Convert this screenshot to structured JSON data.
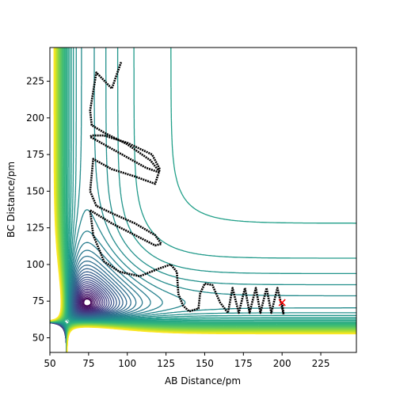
{
  "chart_data": {
    "type": "contour",
    "xlabel": "AB Distance/pm",
    "ylabel": "BC Distance/pm",
    "xlim": [
      50,
      248
    ],
    "ylim": [
      40,
      248
    ],
    "xticks": [
      50,
      75,
      100,
      125,
      150,
      175,
      200,
      225
    ],
    "yticks": [
      50,
      75,
      100,
      125,
      150,
      175,
      200,
      225
    ],
    "series": [
      {
        "color": "#000000",
        "x": [
          200,
          201,
          197,
          193,
          190,
          186,
          183,
          179,
          176,
          172,
          168,
          165,
          160,
          155,
          150,
          147,
          146,
          140,
          136,
          133,
          132,
          128,
          120,
          108,
          95,
          85,
          78,
          76,
          90,
          105,
          118,
          122,
          118,
          105,
          90,
          80,
          76,
          78,
          90,
          105,
          118,
          121,
          116,
          100,
          85,
          77,
          76,
          78,
          95,
          112,
          120,
          121,
          115,
          100,
          85,
          77,
          76,
          80,
          90,
          96
        ],
        "y": [
          74,
          66,
          84,
          67,
          84,
          67,
          84,
          67,
          84,
          67,
          84,
          67,
          74,
          86,
          87,
          80,
          70,
          68,
          72,
          80,
          95,
          100,
          97,
          92,
          95,
          102,
          120,
          137,
          128,
          120,
          113,
          114,
          120,
          128,
          135,
          140,
          150,
          172,
          165,
          160,
          155,
          165,
          175,
          183,
          188,
          188,
          187,
          186,
          176,
          166,
          163,
          163,
          171,
          182,
          190,
          195,
          205,
          231,
          220,
          238
        ]
      }
    ],
    "marker": {
      "x": 200,
      "y": 74,
      "color": "#ff0000"
    }
  }
}
